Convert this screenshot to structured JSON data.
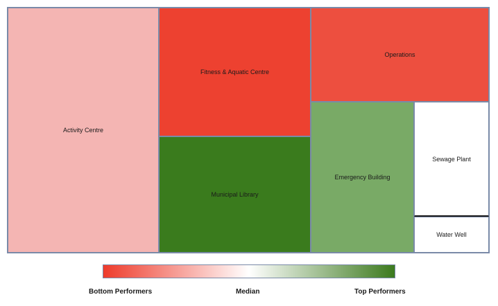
{
  "chart_data": {
    "type": "treemap",
    "colors": {
      "bottom": "#ee3b2c",
      "median": "#ffffff",
      "top": "#3c7a1e"
    },
    "items": [
      {
        "name": "Activity Centre",
        "color": "#f4b5b3"
      },
      {
        "name": "Fitness & Aquatic Centre",
        "color": "#ed4130"
      },
      {
        "name": "Municipal Library",
        "color": "#3a7b1d"
      },
      {
        "name": "Operations",
        "color": "#ed4f3f"
      },
      {
        "name": "Emergency Building",
        "color": "#79aa66"
      },
      {
        "name": "Sewage Plant",
        "color": "#ffffff"
      },
      {
        "name": "Water Well",
        "color": "#ffffff"
      }
    ],
    "legend": {
      "low_label": "Bottom Performers",
      "mid_label": "Median",
      "high_label": "Top Performers"
    }
  }
}
